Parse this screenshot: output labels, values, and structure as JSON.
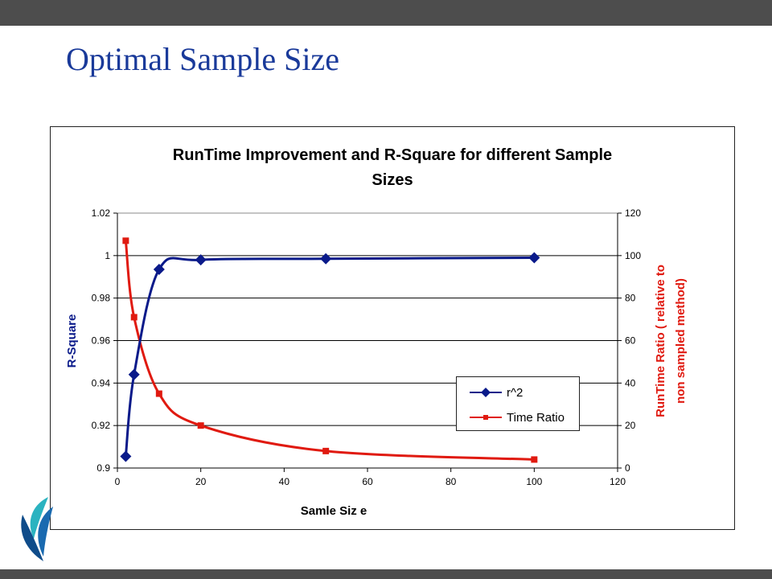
{
  "slide": {
    "title": "Optimal Sample Size"
  },
  "colors": {
    "topbar": "#4d4d4d",
    "title": "#1a3a9a",
    "series_r2": "#0a1a8a",
    "series_time": "#e01a10"
  },
  "chart_data": {
    "type": "line",
    "title": "RunTime Improvement and R-Square for different Sample Sizes",
    "title_lines": [
      "RunTime Improvement and R-Square for different Sample",
      "Sizes"
    ],
    "xlabel": "Samle Siz e",
    "ylabel_left": "R-Square",
    "ylabel_right_lines": [
      "RunTime Ratio ( relative to",
      "non sampled method)"
    ],
    "xlim": [
      0,
      120
    ],
    "ylim_left": [
      0.9,
      1.02
    ],
    "ylim_right": [
      0,
      120
    ],
    "x_ticks": [
      "0",
      "20",
      "40",
      "60",
      "80",
      "100",
      "120"
    ],
    "y_left_ticks": [
      "0.9",
      "0.92",
      "0.94",
      "0.96",
      "0.98",
      "1",
      "1.02"
    ],
    "y_right_ticks": [
      "0",
      "20",
      "40",
      "60",
      "80",
      "100",
      "120"
    ],
    "grid": true,
    "legend_position": "lower-right",
    "series": [
      {
        "name": "r^2",
        "axis": "left",
        "marker": "diamond",
        "color": "#0a1a8a",
        "x": [
          2,
          4,
          10,
          20,
          50,
          100
        ],
        "y": [
          0.9055,
          0.944,
          0.9935,
          0.998,
          0.9985,
          0.999
        ]
      },
      {
        "name": "Time Ratio",
        "axis": "right",
        "marker": "square",
        "color": "#e01a10",
        "x": [
          2,
          4,
          10,
          20,
          50,
          100
        ],
        "y": [
          107,
          71,
          35,
          20,
          8,
          4
        ]
      }
    ]
  }
}
